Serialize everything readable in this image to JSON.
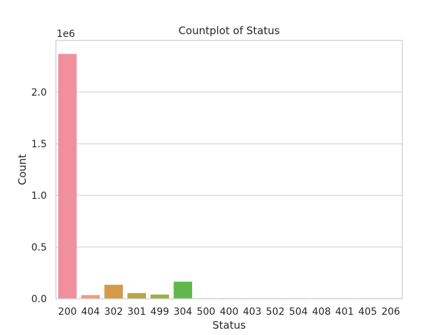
{
  "chart_data": {
    "type": "bar",
    "title": "Countplot of Status",
    "xlabel": "Status",
    "ylabel": "Count",
    "y_scale_label": "1e6",
    "ylim": [
      0,
      2.5
    ],
    "yticks": [
      0.0,
      0.5,
      1.0,
      1.5,
      2.0
    ],
    "ytick_labels": [
      "0.0",
      "0.5",
      "1.0",
      "1.5",
      "2.0"
    ],
    "grid": "horizontal",
    "categories": [
      "200",
      "404",
      "302",
      "301",
      "499",
      "304",
      "500",
      "400",
      "403",
      "502",
      "504",
      "408",
      "401",
      "405",
      "206"
    ],
    "values": [
      2.37,
      0.035,
      0.135,
      0.055,
      0.04,
      0.165,
      0.003,
      0.002,
      0.002,
      0.001,
      0.001,
      0.001,
      0.001,
      0.001,
      0.001
    ],
    "colors": [
      "#f08f9e",
      "#f39b75",
      "#d49a48",
      "#b8a545",
      "#9fad44",
      "#5fb84a",
      "#49b98d",
      "#4ab5a5",
      "#4db2b9",
      "#52aed0",
      "#6fa6e6",
      "#a396f0",
      "#d08bef",
      "#ef84da",
      "#f389bb"
    ]
  }
}
